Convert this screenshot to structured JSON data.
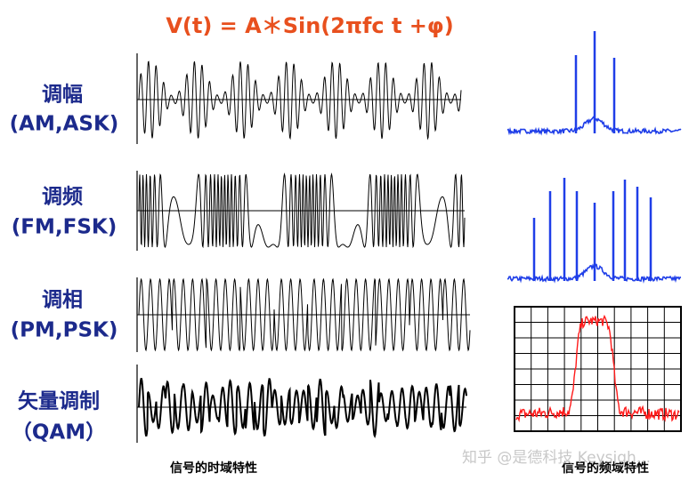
{
  "title": "V(t) = A＊Sin(2πfc t +φ)",
  "rows": [
    {
      "label": "调幅",
      "sublabel": "(AM,ASK)"
    },
    {
      "label": "调频",
      "sublabel": "(FM,FSK)"
    },
    {
      "label": "调相",
      "sublabel": "(PM,PSK)"
    },
    {
      "label": "矢量调制",
      "sublabel": "（QAM）"
    }
  ],
  "captions": {
    "time_domain": "信号的时域特性",
    "frequency_domain": "信号的频域特性"
  },
  "watermark": "知乎 @是德科技 Keysigh..."
}
